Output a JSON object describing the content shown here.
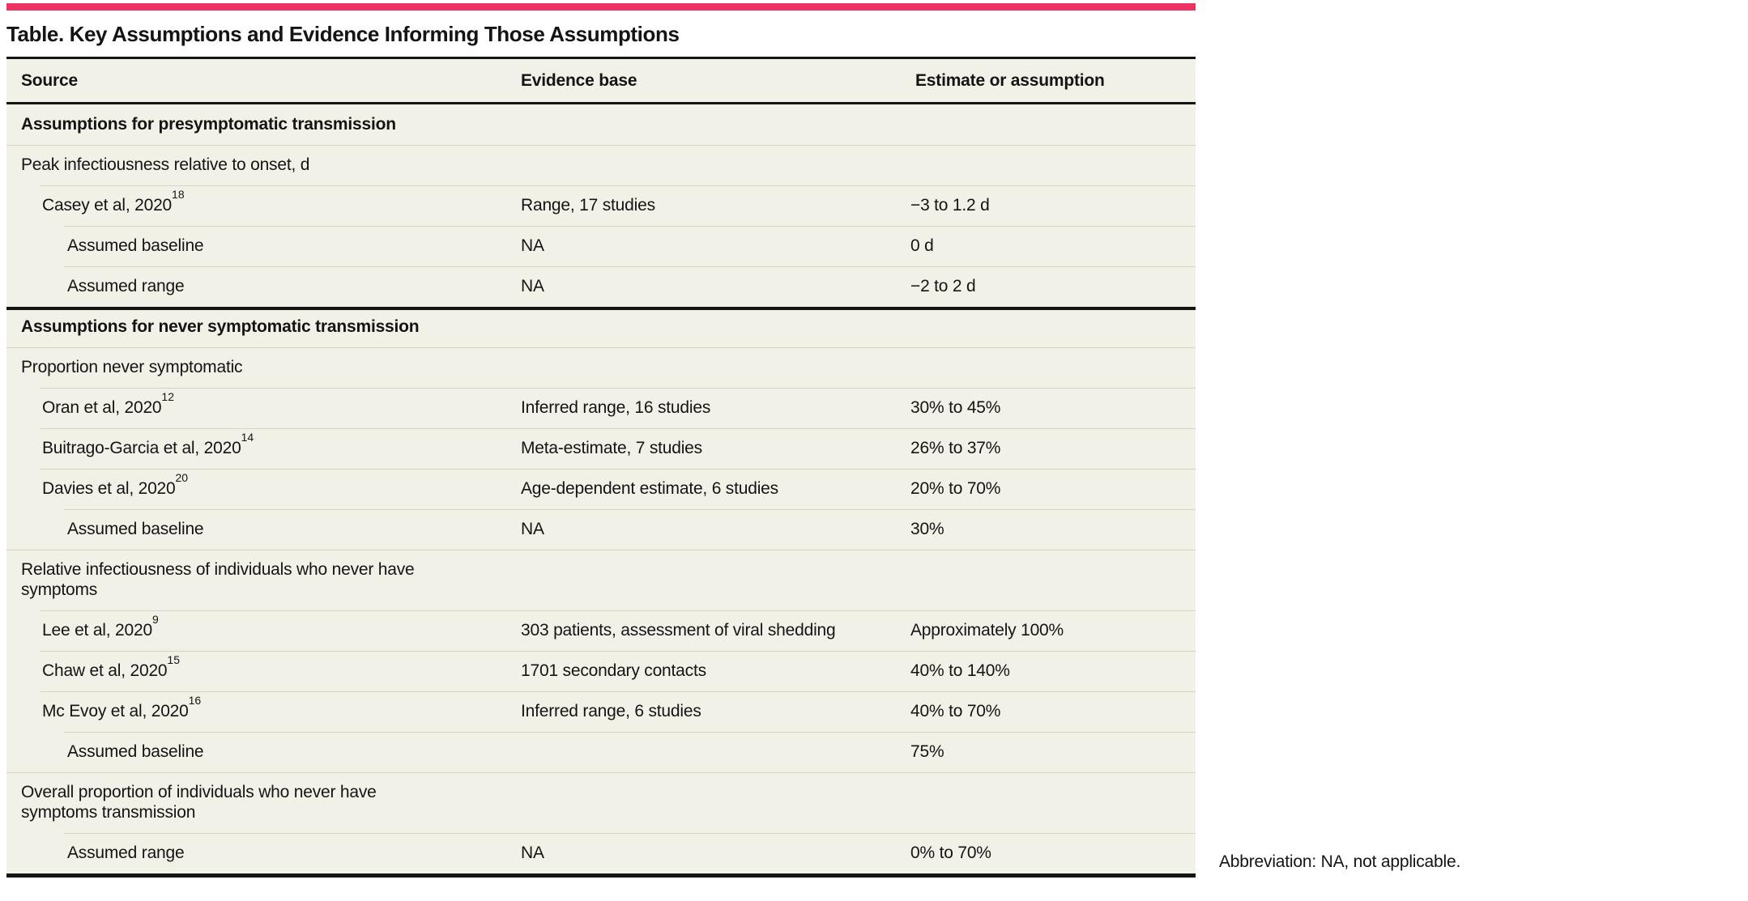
{
  "accent_color": "#ED3363",
  "table": {
    "title": "Table. Key Assumptions and Evidence Informing Those Assumptions",
    "columns": [
      "Source",
      "Evidence base",
      "Estimate or assumption"
    ],
    "rows": [
      {
        "type": "section",
        "indent": 0,
        "rule": "none",
        "source": "Assumptions for presymptomatic transmission",
        "evidence": "",
        "estimate": ""
      },
      {
        "type": "subhead",
        "indent": 0,
        "rule": "light",
        "source": "Peak infectiousness relative to onset, d",
        "evidence": "",
        "estimate": ""
      },
      {
        "type": "data",
        "indent": 1,
        "rule": "light",
        "source": "Casey et al, 2020",
        "ref": "18",
        "evidence": "Range, 17 studies",
        "estimate": "−3 to 1.2 d"
      },
      {
        "type": "data",
        "indent": 2,
        "rule": "light",
        "source": "Assumed baseline",
        "evidence": "NA",
        "estimate": "0 d"
      },
      {
        "type": "data",
        "indent": 2,
        "rule": "light",
        "source": "Assumed range",
        "evidence": "NA",
        "estimate": "−2 to 2 d"
      },
      {
        "type": "section",
        "indent": 0,
        "rule": "thick",
        "source": "Assumptions for never symptomatic transmission",
        "evidence": "",
        "estimate": ""
      },
      {
        "type": "subhead",
        "indent": 0,
        "rule": "light",
        "source": "Proportion never symptomatic",
        "evidence": "",
        "estimate": ""
      },
      {
        "type": "data",
        "indent": 1,
        "rule": "light",
        "source": "Oran et al, 2020",
        "ref": "12",
        "evidence": "Inferred range, 16 studies",
        "estimate": "30% to 45%"
      },
      {
        "type": "data",
        "indent": 1,
        "rule": "light",
        "source": "Buitrago-Garcia et al, 2020",
        "ref": "14",
        "evidence": "Meta-estimate, 7 studies",
        "estimate": "26% to 37%"
      },
      {
        "type": "data",
        "indent": 1,
        "rule": "light",
        "source": "Davies et al, 2020",
        "ref": "20",
        "evidence": "Age-dependent estimate, 6 studies",
        "estimate": "20% to 70%"
      },
      {
        "type": "data",
        "indent": 2,
        "rule": "light",
        "source": "Assumed baseline",
        "evidence": "NA",
        "estimate": "30%"
      },
      {
        "type": "subhead",
        "indent": 0,
        "rule": "light",
        "source": "Relative infectiousness of individuals who never have symptoms",
        "evidence": "",
        "estimate": ""
      },
      {
        "type": "data",
        "indent": 1,
        "rule": "light",
        "source": "Lee et al, 2020",
        "ref": "9",
        "evidence": "303 patients, assessment of viral shedding",
        "estimate": "Approximately 100%"
      },
      {
        "type": "data",
        "indent": 1,
        "rule": "light",
        "source": "Chaw et al, 2020",
        "ref": "15",
        "evidence": "1701 secondary contacts",
        "estimate": "40% to 140%"
      },
      {
        "type": "data",
        "indent": 1,
        "rule": "light",
        "source": "Mc Evoy et al, 2020",
        "ref": "16",
        "evidence": "Inferred range, 6 studies",
        "estimate": "40% to 70%"
      },
      {
        "type": "data",
        "indent": 2,
        "rule": "light",
        "source": "Assumed baseline",
        "evidence": "",
        "estimate": "75%"
      },
      {
        "type": "subhead",
        "indent": 0,
        "rule": "light",
        "source": "Overall proportion of individuals who never have symptoms transmission",
        "evidence": "",
        "estimate": ""
      },
      {
        "type": "data",
        "indent": 2,
        "rule": "light",
        "source": "Assumed range",
        "evidence": "NA",
        "estimate": "0% to 70%"
      }
    ]
  },
  "footnote": "Abbreviation: NA, not applicable."
}
